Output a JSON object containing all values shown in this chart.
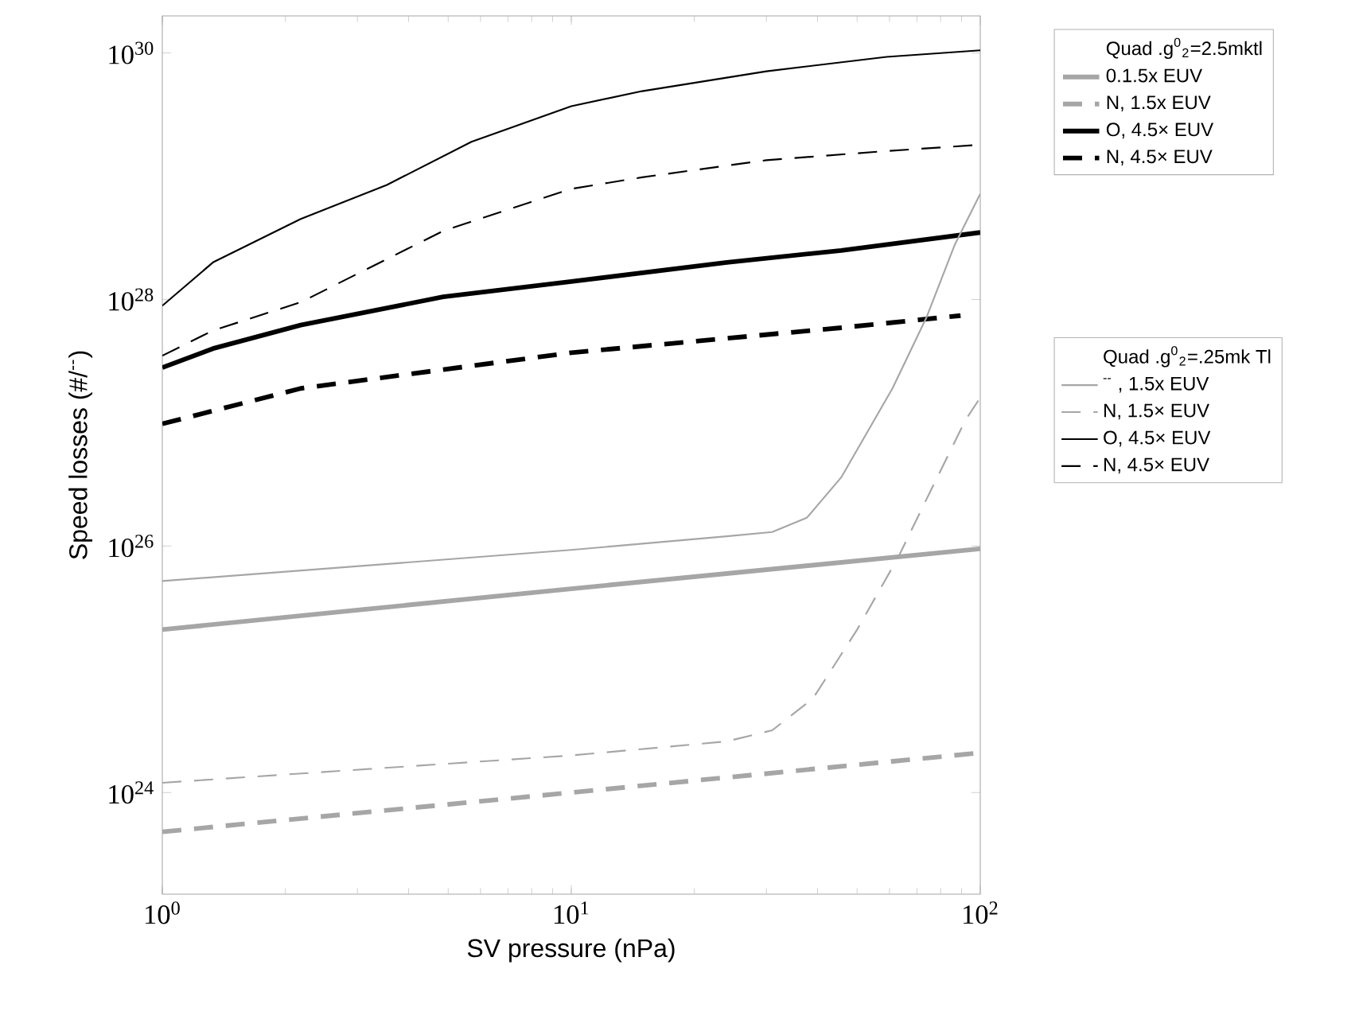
{
  "chart_data": {
    "type": "line",
    "xlabel": "SV pressure (nPa)",
    "ylabel": "Speed losses (#/$^{--}$)",
    "legend_title": "Quad .g$^{0}$$_{2}$=2.5mktl",
    "annotations": [
      "Quad .g$^{0}$$_{2}$=.25mk Tl"
    ],
    "log": "xy",
    "legend": "right",
    "marker": "none",
    "xlim": [
      1,
      100
    ],
    "ylim": [
      1.5e+23,
      2e+30
    ],
    "xticks": [
      {
        "value": 1,
        "label": "10$^{0}$"
      },
      {
        "value": 10,
        "label": "10$^{1}$"
      },
      {
        "value": 100,
        "label": "10$^{2}$"
      }
    ],
    "yticks": [
      {
        "value": 1e+24,
        "label": "10$^{24}$"
      },
      {
        "value": 1e+26,
        "label": "10$^{26}$"
      },
      {
        "value": 1e+28,
        "label": "10$^{28}$"
      },
      {
        "value": 1e+30,
        "label": "10$^{30}$"
      }
    ],
    "series": [
      {
        "name": "0.1.5x EUV",
        "color": "#a6a6a6",
        "line_style": "solid",
        "x": [
          1,
          10,
          100
        ],
        "values": [
          2.1e+25,
          4.5e+25,
          9.5e+25
        ]
      },
      {
        "name": "N, 1.5x EUV",
        "color": "#a6a6a6",
        "line_style": "dashed",
        "x": [
          1,
          10,
          100
        ],
        "values": [
          4.8e+23,
          1e+24,
          2.1e+24
        ]
      },
      {
        "name": "O, 4.5× EUV",
        "color": "#000000",
        "line_style": "solid",
        "x": [
          1,
          1.33,
          2.18,
          4.86,
          10,
          24,
          45.7,
          100
        ],
        "values": [
          2.8e+27,
          4e+27,
          6.2e+27,
          1.05e+28,
          1.4e+28,
          2e+28,
          2.5e+28,
          3.5e+28
        ]
      },
      {
        "name": "N, 4.5× EUV",
        "color": "#000000",
        "line_style": "dashed",
        "x": [
          1,
          2.18,
          10,
          45.7,
          89.5
        ],
        "values": [
          9.8e+26,
          1.9e+27,
          3.7e+27,
          5.9e+27,
          7.4e+27
        ]
      },
      {
        "name": "$^{--}$ , 1.5x EUV",
        "color": "#a6a6a6",
        "line_style": "solid",
        "x": [
          1,
          10,
          24,
          31,
          37.7,
          45.7,
          61,
          73.8,
          86.7,
          100
        ],
        "values": [
          5.2e+25,
          9.3e+25,
          1.2e+26,
          1.3e+26,
          1.7e+26,
          3.6e+26,
          1.9e+27,
          7.1e+27,
          2.8e+28,
          7.2e+28
        ]
      },
      {
        "name": "N, 1.5× EUV",
        "color": "#a6a6a6",
        "line_style": "dashed",
        "x": [
          1,
          10,
          24,
          31,
          39,
          50,
          63,
          76,
          92,
          100
        ],
        "values": [
          1.2e+24,
          2e+24,
          2.6e+24,
          3.2e+24,
          5.8e+24,
          2.1e+25,
          8.1e+25,
          2.9e+26,
          1.05e+27,
          1.6e+27
        ]
      },
      {
        "name": "O, 4.5× EUV",
        "color": "#000000",
        "line_style": "solid",
        "x": [
          1,
          1.33,
          2.18,
          3.54,
          5.7,
          10,
          14.9,
          30,
          59,
          100
        ],
        "values": [
          8.9e+27,
          2e+28,
          4.5e+28,
          8.5e+28,
          1.9e+29,
          3.7e+29,
          4.9e+29,
          7.1e+29,
          9.3e+29,
          1.05e+30
        ]
      },
      {
        "name": "N, 4.5× EUV",
        "color": "#000000",
        "line_style": "dashed",
        "x": [
          1,
          1.33,
          2.18,
          4.86,
          10,
          14.9,
          30,
          59,
          100
        ],
        "values": [
          3.5e+27,
          5.6e+27,
          9.5e+27,
          3.6e+28,
          7.9e+28,
          9.8e+28,
          1.35e+29,
          1.6e+29,
          1.8e+29
        ]
      }
    ]
  }
}
